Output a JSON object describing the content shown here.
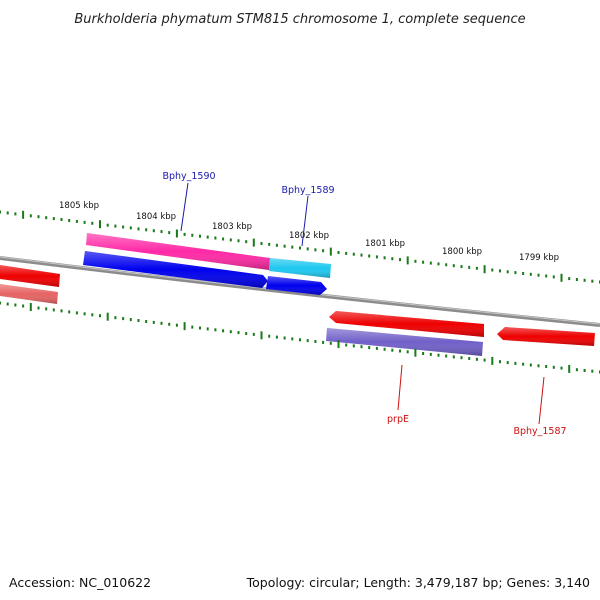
{
  "title": "Burkholderia phymatum STM815 chromosome 1, complete sequence",
  "footer": {
    "accession": "Accession: NC_010622",
    "summary": "Topology: circular; Length: 3,479,187 bp; Genes: 3,140"
  },
  "colors": {
    "backbone": "#8c8c8c",
    "ticks": "#1a7a1a",
    "forward_label": "#1a1aaa",
    "reverse_label": "#cc1111"
  },
  "scale_labels": [
    "1805 kbp",
    "1804 kbp",
    "1803 kbp",
    "1802 kbp",
    "1801 kbp",
    "1800 kbp",
    "1799 kbp"
  ],
  "genes": [
    {
      "name": "Bphy_1590",
      "label_color": "#1a1aaa",
      "cds_color": "#ff2aa6",
      "gene_color": "#0000ee",
      "strand": "forward"
    },
    {
      "name": "Bphy_1589",
      "label_color": "#1a1aaa",
      "cds_color": "#1ec8f0",
      "gene_color": "#0000ee",
      "strand": "forward"
    },
    {
      "name": "prpE",
      "label_color": "#cc1111",
      "cds_color": "#7060c8",
      "gene_color": "#ee0000",
      "strand": "reverse"
    },
    {
      "name": "Bphy_1587",
      "label_color": "#cc1111",
      "gene_color": "#ee0000",
      "strand": "reverse"
    }
  ]
}
